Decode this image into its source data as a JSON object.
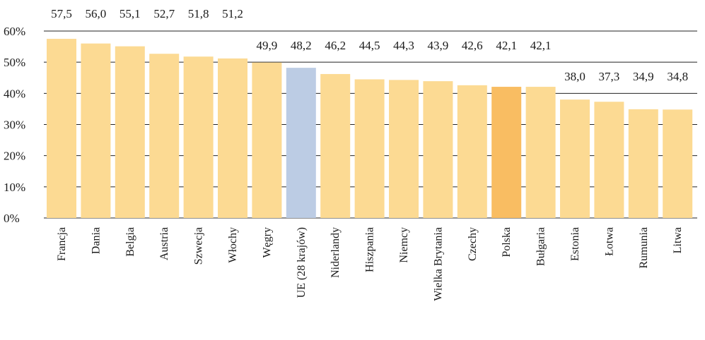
{
  "chart_data": {
    "type": "bar",
    "categories": [
      "Francja",
      "Dania",
      "Belgia",
      "Austria",
      "Szwecja",
      "Włochy",
      "Węgry",
      "UE (28 krajów)",
      "Niderlandy",
      "Hiszpania",
      "Niemcy",
      "Wielka Brytania",
      "Czechy",
      "Polska",
      "Bułgaria",
      "Estonia",
      "Łotwa",
      "Rumunia",
      "Litwa"
    ],
    "values": [
      57.5,
      56.0,
      55.1,
      52.7,
      51.8,
      51.2,
      49.9,
      48.2,
      46.2,
      44.5,
      44.3,
      43.9,
      42.6,
      42.1,
      42.1,
      38.0,
      37.3,
      34.9,
      34.8
    ],
    "value_labels": [
      "57,5",
      "56,0",
      "55,1",
      "52,7",
      "51,8",
      "51,2",
      "49,9",
      "48,2",
      "46,2",
      "44,5",
      "44,3",
      "43,9",
      "42,6",
      "42,1",
      "42,1",
      "38,0",
      "37,3",
      "34,9",
      "34,8"
    ],
    "y_tick_labels": [
      "0%",
      "10%",
      "20%",
      "30%",
      "40%",
      "50%",
      "60%"
    ],
    "y_ticks": [
      0,
      10,
      20,
      30,
      40,
      50,
      60
    ],
    "ylim": [
      0,
      60
    ],
    "grid": true,
    "legend": "none",
    "colors": {
      "default": "#FCDA93",
      "eu": "#BCCCE4",
      "highlight": "#F9BD62",
      "grid": "#222222"
    },
    "highlight_categories": {
      "UE (28 krajów)": "eu",
      "Polska": "highlight"
    }
  }
}
